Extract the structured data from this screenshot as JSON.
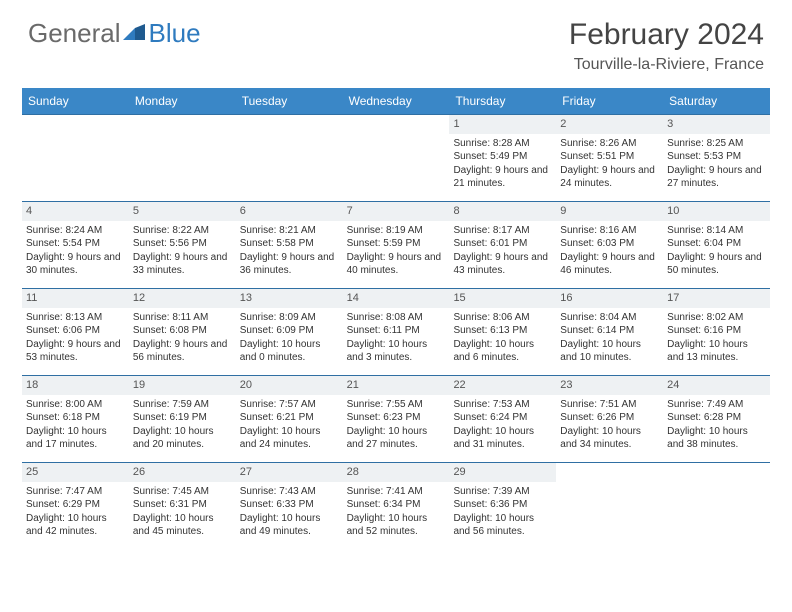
{
  "brand": {
    "part1": "General",
    "part2": "Blue"
  },
  "title": {
    "month": "February 2024",
    "location": "Tourville-la-Riviere, France"
  },
  "colors": {
    "header_bg": "#3a87c7",
    "header_text": "#ffffff",
    "week_border": "#2f6fa3",
    "daynum_bg": "#eef1f3",
    "text": "#333333",
    "brand_gray": "#6a6a6a",
    "brand_blue": "#2f7bbf"
  },
  "day_headers": [
    "Sunday",
    "Monday",
    "Tuesday",
    "Wednesday",
    "Thursday",
    "Friday",
    "Saturday"
  ],
  "weeks": [
    [
      {
        "n": "",
        "info": ""
      },
      {
        "n": "",
        "info": ""
      },
      {
        "n": "",
        "info": ""
      },
      {
        "n": "",
        "info": ""
      },
      {
        "n": "1",
        "info": "Sunrise: 8:28 AM\nSunset: 5:49 PM\nDaylight: 9 hours and 21 minutes."
      },
      {
        "n": "2",
        "info": "Sunrise: 8:26 AM\nSunset: 5:51 PM\nDaylight: 9 hours and 24 minutes."
      },
      {
        "n": "3",
        "info": "Sunrise: 8:25 AM\nSunset: 5:53 PM\nDaylight: 9 hours and 27 minutes."
      }
    ],
    [
      {
        "n": "4",
        "info": "Sunrise: 8:24 AM\nSunset: 5:54 PM\nDaylight: 9 hours and 30 minutes."
      },
      {
        "n": "5",
        "info": "Sunrise: 8:22 AM\nSunset: 5:56 PM\nDaylight: 9 hours and 33 minutes."
      },
      {
        "n": "6",
        "info": "Sunrise: 8:21 AM\nSunset: 5:58 PM\nDaylight: 9 hours and 36 minutes."
      },
      {
        "n": "7",
        "info": "Sunrise: 8:19 AM\nSunset: 5:59 PM\nDaylight: 9 hours and 40 minutes."
      },
      {
        "n": "8",
        "info": "Sunrise: 8:17 AM\nSunset: 6:01 PM\nDaylight: 9 hours and 43 minutes."
      },
      {
        "n": "9",
        "info": "Sunrise: 8:16 AM\nSunset: 6:03 PM\nDaylight: 9 hours and 46 minutes."
      },
      {
        "n": "10",
        "info": "Sunrise: 8:14 AM\nSunset: 6:04 PM\nDaylight: 9 hours and 50 minutes."
      }
    ],
    [
      {
        "n": "11",
        "info": "Sunrise: 8:13 AM\nSunset: 6:06 PM\nDaylight: 9 hours and 53 minutes."
      },
      {
        "n": "12",
        "info": "Sunrise: 8:11 AM\nSunset: 6:08 PM\nDaylight: 9 hours and 56 minutes."
      },
      {
        "n": "13",
        "info": "Sunrise: 8:09 AM\nSunset: 6:09 PM\nDaylight: 10 hours and 0 minutes."
      },
      {
        "n": "14",
        "info": "Sunrise: 8:08 AM\nSunset: 6:11 PM\nDaylight: 10 hours and 3 minutes."
      },
      {
        "n": "15",
        "info": "Sunrise: 8:06 AM\nSunset: 6:13 PM\nDaylight: 10 hours and 6 minutes."
      },
      {
        "n": "16",
        "info": "Sunrise: 8:04 AM\nSunset: 6:14 PM\nDaylight: 10 hours and 10 minutes."
      },
      {
        "n": "17",
        "info": "Sunrise: 8:02 AM\nSunset: 6:16 PM\nDaylight: 10 hours and 13 minutes."
      }
    ],
    [
      {
        "n": "18",
        "info": "Sunrise: 8:00 AM\nSunset: 6:18 PM\nDaylight: 10 hours and 17 minutes."
      },
      {
        "n": "19",
        "info": "Sunrise: 7:59 AM\nSunset: 6:19 PM\nDaylight: 10 hours and 20 minutes."
      },
      {
        "n": "20",
        "info": "Sunrise: 7:57 AM\nSunset: 6:21 PM\nDaylight: 10 hours and 24 minutes."
      },
      {
        "n": "21",
        "info": "Sunrise: 7:55 AM\nSunset: 6:23 PM\nDaylight: 10 hours and 27 minutes."
      },
      {
        "n": "22",
        "info": "Sunrise: 7:53 AM\nSunset: 6:24 PM\nDaylight: 10 hours and 31 minutes."
      },
      {
        "n": "23",
        "info": "Sunrise: 7:51 AM\nSunset: 6:26 PM\nDaylight: 10 hours and 34 minutes."
      },
      {
        "n": "24",
        "info": "Sunrise: 7:49 AM\nSunset: 6:28 PM\nDaylight: 10 hours and 38 minutes."
      }
    ],
    [
      {
        "n": "25",
        "info": "Sunrise: 7:47 AM\nSunset: 6:29 PM\nDaylight: 10 hours and 42 minutes."
      },
      {
        "n": "26",
        "info": "Sunrise: 7:45 AM\nSunset: 6:31 PM\nDaylight: 10 hours and 45 minutes."
      },
      {
        "n": "27",
        "info": "Sunrise: 7:43 AM\nSunset: 6:33 PM\nDaylight: 10 hours and 49 minutes."
      },
      {
        "n": "28",
        "info": "Sunrise: 7:41 AM\nSunset: 6:34 PM\nDaylight: 10 hours and 52 minutes."
      },
      {
        "n": "29",
        "info": "Sunrise: 7:39 AM\nSunset: 6:36 PM\nDaylight: 10 hours and 56 minutes."
      },
      {
        "n": "",
        "info": ""
      },
      {
        "n": "",
        "info": ""
      }
    ]
  ]
}
